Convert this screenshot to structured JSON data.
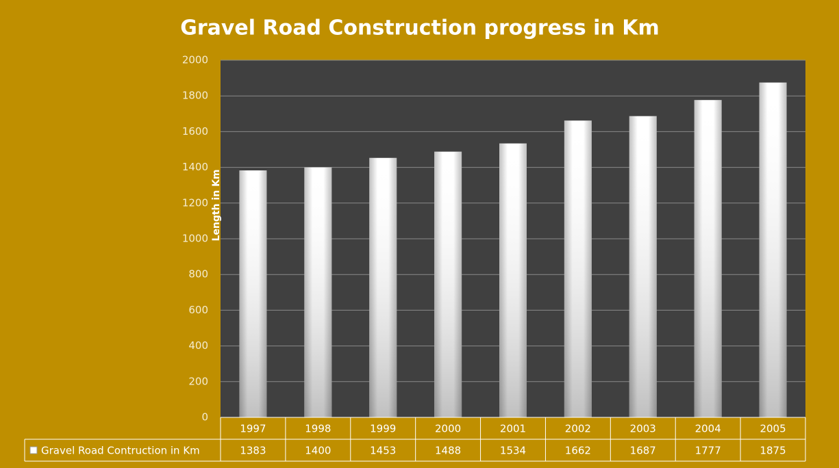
{
  "chart_data": {
    "type": "bar",
    "title": "Gravel Road Construction progress in Km",
    "y_label": "Length in Km",
    "categories": [
      "1997",
      "1998",
      "1999",
      "2000",
      "2001",
      "2002",
      "2003",
      "2004",
      "2005"
    ],
    "series": [
      {
        "name": "Gravel Road Contruction in Km",
        "color": "#ffffff",
        "values": [
          1383,
          1400,
          1453,
          1488,
          1534,
          1662,
          1687,
          1777,
          1875
        ]
      }
    ],
    "ylim": [
      0,
      2000
    ],
    "yticks": [
      0,
      200,
      400,
      600,
      800,
      1000,
      1200,
      1400,
      1600,
      1800,
      2000
    ],
    "grid": true,
    "data_table": true
  }
}
